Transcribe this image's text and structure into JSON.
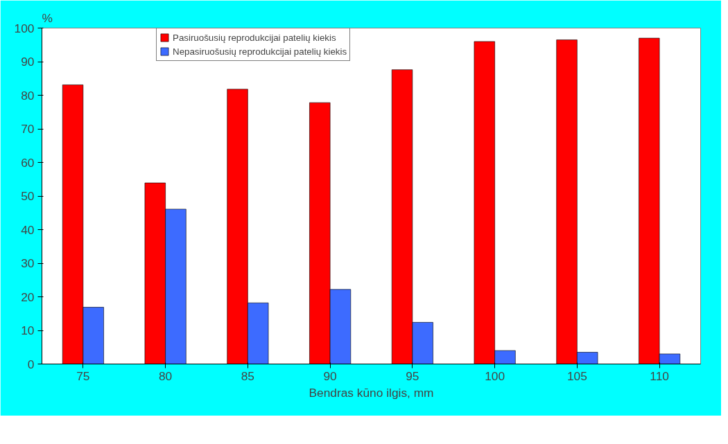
{
  "chart_data": {
    "type": "bar",
    "xlabel": "Bendras kūno ilgis, mm",
    "ylabel": "%",
    "categories": [
      "75",
      "80",
      "85",
      "90",
      "95",
      "100",
      "105",
      "110"
    ],
    "series": [
      {
        "name": "Pasiruošusių reprodukcijai patelių kiekis",
        "color": "#ff0000",
        "values": [
          83.1,
          53.9,
          81.8,
          77.8,
          87.6,
          96.0,
          96.5,
          97.0
        ]
      },
      {
        "name": "Nepasiruošusių reprodukcijai patelių kiekis",
        "color": "#3d6bff",
        "values": [
          16.9,
          46.1,
          18.2,
          22.2,
          12.4,
          4.0,
          3.5,
          3.0
        ]
      }
    ],
    "ylim": [
      0,
      100
    ],
    "yticks": [
      0,
      10,
      20,
      30,
      40,
      50,
      60,
      70,
      80,
      90,
      100
    ],
    "grid": false,
    "legend": "top"
  }
}
